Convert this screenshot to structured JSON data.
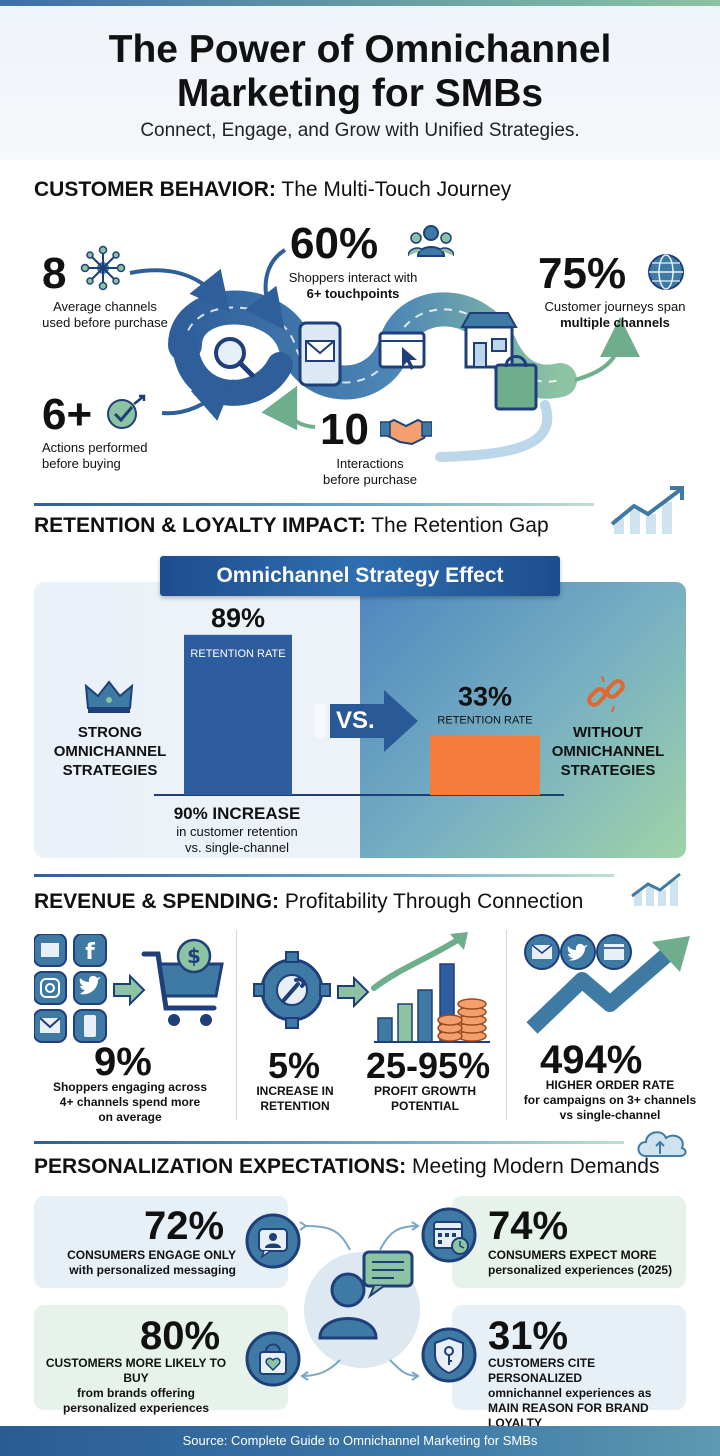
{
  "header": {
    "title_line1": "The Power of Omnichannel",
    "title_line2": "Marketing for SMBs",
    "subtitle": "Connect, Engage, and Grow with Unified Strategies."
  },
  "behavior": {
    "title_bold": "CUSTOMER BEHAVIOR:",
    "title_rest": " The Multi-Touch Journey",
    "stat_channels": {
      "value": "8",
      "line1": "Average channels",
      "line2": "used before purchase"
    },
    "stat_touchpoints": {
      "value": "60%",
      "line1": "Shoppers interact with",
      "line2": "6+ touchpoints"
    },
    "stat_journeys": {
      "value": "75%",
      "line1": "Customer journeys span",
      "line2": "multiple channels"
    },
    "stat_actions": {
      "value": "6+",
      "line1": "Actions performed",
      "line2": "before buying"
    },
    "stat_interactions": {
      "value": "10",
      "line1": "Interactions",
      "line2": "before purchase"
    }
  },
  "retention": {
    "title_bold": "RETENTION & LOYALTY IMPACT:",
    "title_rest": " The Retention Gap",
    "banner": "Omnichannel Strategy Effect",
    "strong_label": [
      "STRONG",
      "OMNICHANNEL",
      "STRATEGIES"
    ],
    "without_label": [
      "WITHOUT",
      "OMNICHANNEL",
      "STRATEGIES"
    ],
    "vs": "VS.",
    "increase_title": "90% INCREASE",
    "increase_line1": "in customer retention",
    "increase_line2": "vs. single-channel"
  },
  "chart_data": {
    "type": "bar",
    "categories": [
      "STRONG OMNICHANNEL STRATEGIES",
      "WITHOUT OMNICHANNEL STRATEGIES"
    ],
    "values": [
      89,
      33
    ],
    "value_labels": [
      "89%",
      "33%"
    ],
    "bar_label": "RETENTION RATE",
    "ylim": [
      0,
      100
    ],
    "colors": [
      "#2d5d9e",
      "#f47c3c"
    ]
  },
  "revenue": {
    "title_bold": "REVENUE & SPENDING:",
    "title_rest": " Profitability Through Connection",
    "stat_spend": {
      "value": "9%",
      "line1": "Shoppers engaging across",
      "line2": "4+ channels spend more",
      "line3": "on average"
    },
    "stat_retention": {
      "value": "5%",
      "line1": "INCREASE IN",
      "line2": "RETENTION"
    },
    "stat_profit": {
      "value": "25-95%",
      "line1": "PROFIT GROWTH",
      "line2": "POTENTIAL"
    },
    "stat_order": {
      "value": "494%",
      "line1": "HIGHER ORDER RATE",
      "line2": "for campaigns on 3+ channels",
      "line3": "vs single-channel"
    }
  },
  "personalization": {
    "title_bold": "PERSONALIZATION EXPECTATIONS:",
    "title_rest": " Meeting Modern Demands",
    "card_72": {
      "value": "72%",
      "line1": "CONSUMERS ENGAGE ONLY",
      "line2": "with personalized messaging"
    },
    "card_74": {
      "value": "74%",
      "line1": "CONSUMERS EXPECT MORE",
      "line2": "personalized experiences (2025)"
    },
    "card_80": {
      "value": "80%",
      "line1": "CUSTOMERS MORE LIKELY TO BUY",
      "line2": "from brands offering",
      "line3": "personalized experiences"
    },
    "card_31": {
      "value": "31%",
      "line1": "CUSTOMERS CITE PERSONALIZED",
      "line2": "omnichannel experiences as",
      "line3": "MAIN REASON FOR BRAND LOYALTY"
    }
  },
  "footer": {
    "source": "Source: Complete Guide to Omnichannel Marketing for SMBs"
  },
  "colors": {
    "navy": "#1f3f7a",
    "accent_orange": "#f47c3c",
    "accent_green": "#8cc3a2",
    "accent_blue": "#3f7aa5"
  }
}
